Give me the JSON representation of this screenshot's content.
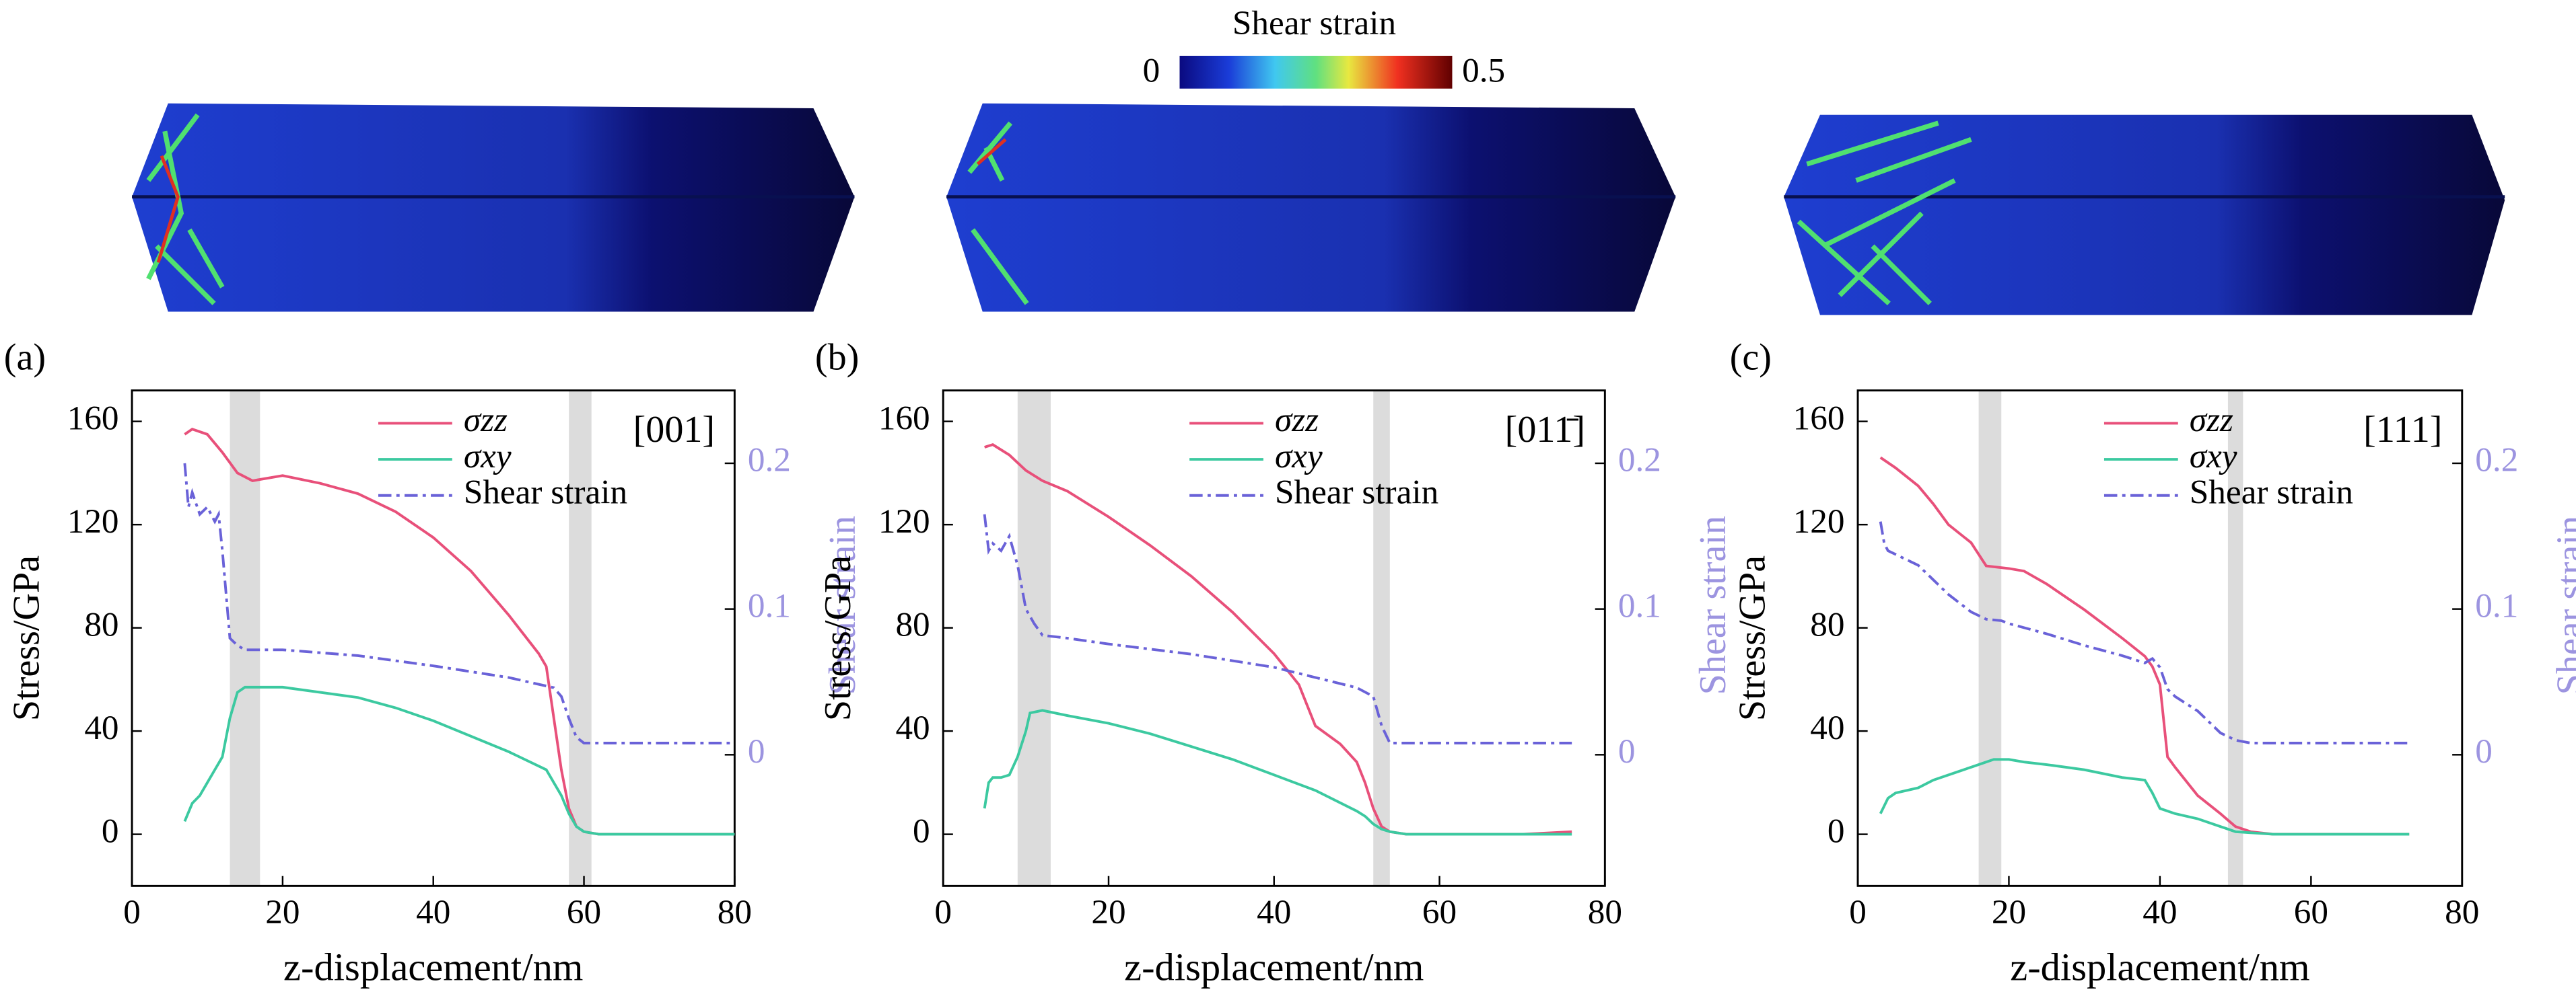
{
  "colorbar": {
    "title": "Shear strain",
    "min": 0,
    "max": 0.5
  },
  "chart_data": [
    {
      "type": "line",
      "label": "(a)",
      "annotation": "[001]",
      "x_label": "z-displacement/nm",
      "y_label": "Stress/GPa",
      "y2_label": "Shear strain",
      "xlim": [
        0,
        80
      ],
      "xticks": [
        0,
        20,
        40,
        60,
        80
      ],
      "ylim": [
        -20,
        172
      ],
      "yticks": [
        0,
        40,
        80,
        120,
        160
      ],
      "y2lim": [
        -0.09,
        0.25
      ],
      "y2ticks": [
        0,
        0.1,
        0.2
      ],
      "highlight_ranges": [
        [
          13,
          17
        ],
        [
          58,
          61
        ]
      ],
      "series": [
        {
          "name": "σzz",
          "color": "#e8507a",
          "x": [
            7,
            8,
            10,
            12,
            14,
            16,
            18,
            20,
            25,
            30,
            35,
            40,
            45,
            50,
            54,
            55,
            56,
            57,
            58,
            59,
            60,
            62,
            70,
            80
          ],
          "values": [
            155,
            157,
            155,
            148,
            140,
            137,
            138,
            139,
            136,
            132,
            125,
            115,
            102,
            85,
            70,
            65,
            45,
            25,
            10,
            3,
            1,
            0,
            0,
            0
          ]
        },
        {
          "name": "σxy",
          "color": "#3cc9a0",
          "x": [
            7,
            8,
            9,
            10,
            11,
            12,
            13,
            14,
            15,
            17,
            20,
            25,
            30,
            35,
            40,
            45,
            50,
            55,
            57,
            58,
            59,
            60,
            62,
            70,
            80
          ],
          "values": [
            5,
            12,
            15,
            20,
            25,
            30,
            45,
            55,
            57,
            57,
            57,
            55,
            53,
            49,
            44,
            38,
            32,
            25,
            15,
            8,
            3,
            1,
            0,
            0,
            0
          ]
        },
        {
          "name": "Shear strain",
          "color": "#6a62d8",
          "axis": "y2",
          "x": [
            7,
            7.5,
            8,
            9,
            10,
            11,
            11.5,
            12,
            12.5,
            13,
            14,
            15,
            16,
            20,
            30,
            40,
            50,
            56,
            57,
            58,
            59,
            60,
            62,
            70,
            80
          ],
          "values": [
            0.2,
            0.17,
            0.18,
            0.165,
            0.17,
            0.16,
            0.165,
            0.14,
            0.11,
            0.08,
            0.075,
            0.072,
            0.072,
            0.072,
            0.068,
            0.061,
            0.053,
            0.046,
            0.04,
            0.025,
            0.012,
            0.008,
            0.008,
            0.008,
            0.008
          ]
        }
      ]
    },
    {
      "type": "line",
      "label": "(b)",
      "annotation": "[011̄]",
      "x_label": "z-displacement/nm",
      "y_label": "Stress/GPa",
      "y2_label": "Shear strain",
      "xlim": [
        0,
        80
      ],
      "xticks": [
        0,
        20,
        40,
        60,
        80
      ],
      "ylim": [
        -20,
        172
      ],
      "yticks": [
        0,
        40,
        80,
        120,
        160
      ],
      "y2lim": [
        -0.09,
        0.25
      ],
      "y2ticks": [
        0,
        0.1,
        0.2
      ],
      "highlight_ranges": [
        [
          9,
          13
        ],
        [
          52,
          54
        ]
      ],
      "series": [
        {
          "name": "σzz",
          "color": "#e8507a",
          "x": [
            5,
            6,
            8,
            10,
            12,
            15,
            20,
            25,
            30,
            35,
            40,
            43,
            45,
            48,
            50,
            51,
            52,
            53,
            54,
            56,
            60,
            70,
            76
          ],
          "values": [
            150,
            151,
            147,
            141,
            137,
            133,
            123,
            112,
            100,
            86,
            70,
            58,
            42,
            35,
            28,
            20,
            10,
            3,
            1,
            0,
            0,
            0,
            1
          ]
        },
        {
          "name": "σxy",
          "color": "#3cc9a0",
          "x": [
            5,
            5.5,
            6,
            7,
            8,
            9,
            10,
            10.5,
            12,
            15,
            20,
            25,
            30,
            35,
            40,
            45,
            50,
            51,
            52,
            53,
            54,
            56,
            60,
            70,
            76
          ],
          "values": [
            10,
            20,
            22,
            22,
            23,
            30,
            40,
            47,
            48,
            46,
            43,
            39,
            34,
            29,
            23,
            17,
            9,
            7,
            4,
            2,
            1,
            0,
            0,
            0,
            0
          ]
        },
        {
          "name": "Shear strain",
          "color": "#6a62d8",
          "axis": "y2",
          "x": [
            5,
            5.5,
            6,
            7,
            8,
            9,
            10,
            11,
            12,
            15,
            20,
            30,
            40,
            45,
            50,
            52,
            53,
            54,
            56,
            60,
            70,
            76
          ],
          "values": [
            0.165,
            0.14,
            0.145,
            0.14,
            0.15,
            0.13,
            0.1,
            0.09,
            0.082,
            0.08,
            0.076,
            0.069,
            0.06,
            0.053,
            0.046,
            0.04,
            0.02,
            0.008,
            0.008,
            0.008,
            0.008,
            0.008
          ]
        }
      ]
    },
    {
      "type": "line",
      "label": "(c)",
      "annotation": "[111]",
      "x_label": "z-displacement/nm",
      "y_label": "Stress/GPa",
      "y2_label": "Shear strain",
      "xlim": [
        0,
        80
      ],
      "xticks": [
        0,
        20,
        40,
        60,
        80
      ],
      "ylim": [
        -20,
        172
      ],
      "yticks": [
        0,
        40,
        80,
        120,
        160
      ],
      "y2lim": [
        -0.09,
        0.25
      ],
      "y2ticks": [
        0,
        0.1,
        0.2
      ],
      "highlight_ranges": [
        [
          16,
          19
        ],
        [
          49,
          51
        ]
      ],
      "series": [
        {
          "name": "σzz",
          "color": "#e8507a",
          "x": [
            3,
            5,
            8,
            10,
            12,
            15,
            17,
            20,
            22,
            25,
            30,
            35,
            38,
            39,
            40,
            41,
            42,
            45,
            48,
            50,
            52,
            55,
            60,
            73
          ],
          "values": [
            146,
            142,
            135,
            128,
            120,
            113,
            104,
            103,
            102,
            97,
            87,
            76,
            69,
            65,
            58,
            30,
            26,
            15,
            8,
            3,
            1,
            0,
            0,
            0
          ]
        },
        {
          "name": "σxy",
          "color": "#3cc9a0",
          "x": [
            3,
            4,
            5,
            8,
            10,
            15,
            18,
            20,
            22,
            25,
            30,
            35,
            38,
            39,
            40,
            42,
            45,
            48,
            50,
            55,
            60,
            73
          ],
          "values": [
            8,
            14,
            16,
            18,
            21,
            26,
            29,
            29,
            28,
            27,
            25,
            22,
            21,
            16,
            10,
            8,
            6,
            3,
            1,
            0,
            0,
            0
          ]
        },
        {
          "name": "Shear strain",
          "color": "#6a62d8",
          "axis": "y2",
          "x": [
            3,
            3.5,
            4,
            6,
            8,
            10,
            12,
            15,
            17,
            19,
            20,
            25,
            30,
            35,
            38,
            39,
            40,
            41,
            42,
            45,
            48,
            50,
            52,
            55,
            60,
            73
          ],
          "values": [
            0.16,
            0.145,
            0.14,
            0.135,
            0.13,
            0.12,
            0.11,
            0.098,
            0.093,
            0.092,
            0.09,
            0.083,
            0.075,
            0.068,
            0.063,
            0.066,
            0.06,
            0.045,
            0.04,
            0.03,
            0.015,
            0.01,
            0.008,
            0.008,
            0.008,
            0.008
          ]
        }
      ]
    }
  ]
}
